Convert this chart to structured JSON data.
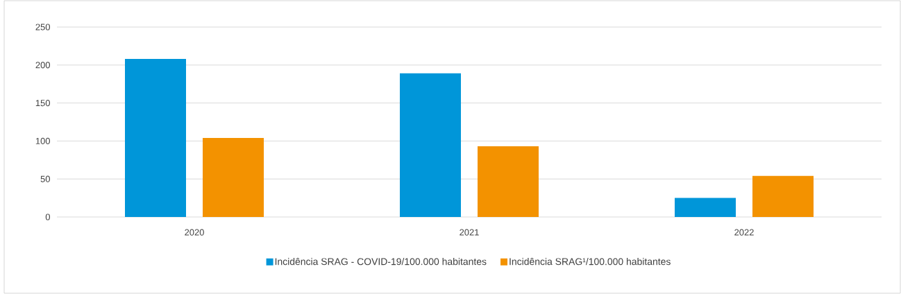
{
  "chart_data": {
    "type": "bar",
    "categories": [
      "2020",
      "2021",
      "2022"
    ],
    "series": [
      {
        "name": "Incidência SRAG - COVID-19/100.000 habitantes",
        "color": "#0096d9",
        "values": [
          208,
          189,
          25
        ]
      },
      {
        "name": "Incidência SRAG¹/100.000 habitantes",
        "color": "#f39200",
        "values": [
          104,
          93,
          54
        ]
      }
    ],
    "ylim": [
      0,
      250
    ],
    "yticks": [
      0,
      50,
      100,
      150,
      200,
      250
    ],
    "grid": "y",
    "legend": "bottom"
  }
}
